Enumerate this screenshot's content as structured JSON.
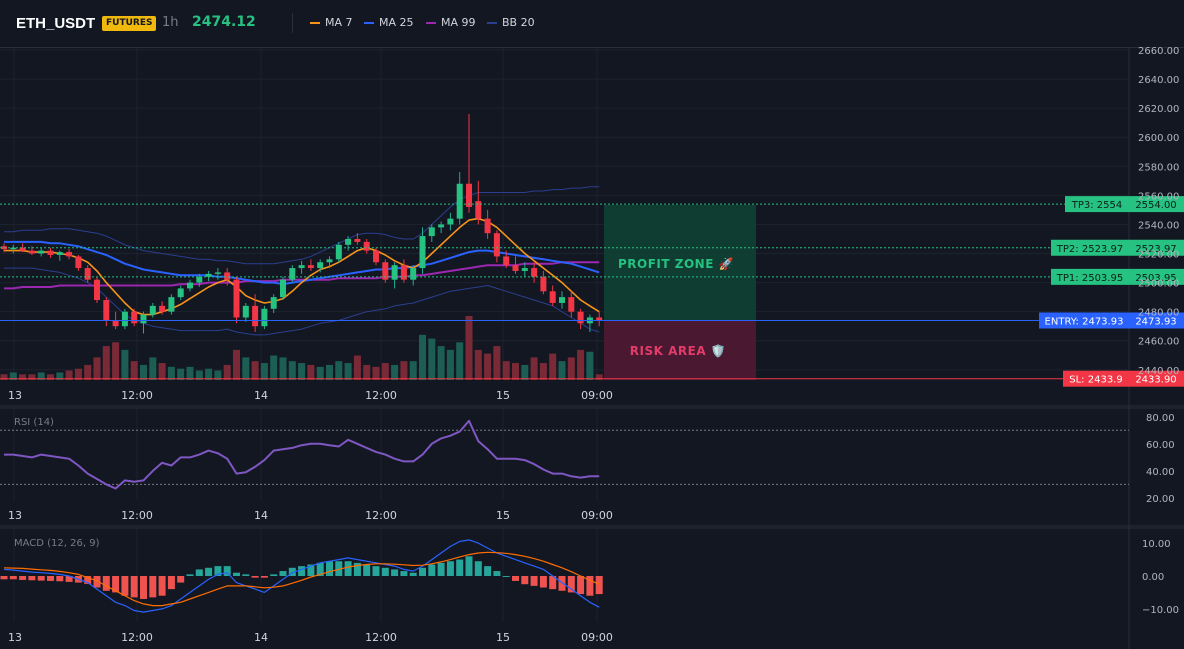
{
  "header": {
    "symbol": "ETH_USDT",
    "badge": "FUTURES",
    "timeframe": "1h",
    "last_price": "2474.12",
    "indicators": [
      {
        "label": "MA 7",
        "color": "#f7931a"
      },
      {
        "label": "MA 25",
        "color": "#2962ff"
      },
      {
        "label": "MA 99",
        "color": "#9c27b0"
      },
      {
        "label": "BB 20",
        "color": "#2a3f8f"
      }
    ]
  },
  "chart_data": [
    {
      "type": "candlestick",
      "title": "",
      "ylim": [
        2433,
        2660
      ],
      "y_ticks": [
        "2440.00",
        "2460.00",
        "2480.00",
        "2500.00",
        "2520.00",
        "2540.00",
        "2560.00",
        "2580.00",
        "2600.00",
        "2620.00",
        "2640.00",
        "2660.00"
      ],
      "x_ticks": [
        "13",
        "12:00",
        "14",
        "12:00",
        "15",
        "09:00"
      ],
      "levels": [
        {
          "name": "TP3",
          "label": "TP3: 2554",
          "axis_value": "2554.00",
          "value": 2554,
          "color": "#26c281"
        },
        {
          "name": "TP2",
          "label": "TP2: 2523.97",
          "axis_value": "2523.97",
          "value": 2523.97,
          "color": "#26c281"
        },
        {
          "name": "TP1",
          "label": "TP1: 2503.95",
          "axis_value": "2503.95",
          "value": 2503.95,
          "color": "#26c281"
        },
        {
          "name": "ENTRY",
          "label": "ENTRY: 2473.93",
          "axis_value": "2473.93",
          "value": 2473.93,
          "color": "#2962ff"
        },
        {
          "name": "SL",
          "label": "SL: 2433.9",
          "axis_value": "2433.90",
          "value": 2433.9,
          "color": "#f23645"
        }
      ],
      "zones": {
        "profit_label": "PROFIT ZONE 🚀",
        "risk_label": "RISK AREA 🛡️"
      },
      "candles": [
        [
          2525,
          2527,
          2521,
          2523
        ],
        [
          2523,
          2526,
          2520,
          2524
        ],
        [
          2524,
          2527,
          2521,
          2522
        ],
        [
          2522,
          2525,
          2519,
          2520
        ],
        [
          2520,
          2524,
          2518,
          2522
        ],
        [
          2522,
          2524,
          2517,
          2519
        ],
        [
          2519,
          2522,
          2515,
          2521
        ],
        [
          2521,
          2523,
          2516,
          2518
        ],
        [
          2518,
          2519,
          2508,
          2510
        ],
        [
          2510,
          2512,
          2500,
          2502
        ],
        [
          2502,
          2504,
          2486,
          2488
        ],
        [
          2488,
          2490,
          2470,
          2474
        ],
        [
          2474,
          2480,
          2468,
          2470
        ],
        [
          2470,
          2482,
          2468,
          2480
        ],
        [
          2480,
          2482,
          2470,
          2472
        ],
        [
          2472,
          2480,
          2465,
          2478
        ],
        [
          2478,
          2486,
          2476,
          2484
        ],
        [
          2484,
          2487,
          2478,
          2480
        ],
        [
          2480,
          2492,
          2478,
          2490
        ],
        [
          2490,
          2498,
          2488,
          2496
        ],
        [
          2496,
          2502,
          2494,
          2500
        ],
        [
          2500,
          2506,
          2497,
          2504
        ],
        [
          2504,
          2508,
          2501,
          2506
        ],
        [
          2506,
          2510,
          2502,
          2507
        ],
        [
          2507,
          2510,
          2498,
          2502
        ],
        [
          2502,
          2504,
          2472,
          2476
        ],
        [
          2476,
          2486,
          2473,
          2484
        ],
        [
          2484,
          2492,
          2466,
          2470
        ],
        [
          2470,
          2484,
          2468,
          2482
        ],
        [
          2482,
          2492,
          2479,
          2490
        ],
        [
          2490,
          2504,
          2488,
          2502
        ],
        [
          2502,
          2512,
          2500,
          2510
        ],
        [
          2510,
          2515,
          2506,
          2512
        ],
        [
          2512,
          2516,
          2508,
          2510
        ],
        [
          2510,
          2516,
          2507,
          2514
        ],
        [
          2514,
          2518,
          2510,
          2516
        ],
        [
          2516,
          2528,
          2514,
          2526
        ],
        [
          2526,
          2532,
          2522,
          2530
        ],
        [
          2530,
          2534,
          2526,
          2528
        ],
        [
          2528,
          2530,
          2520,
          2522
        ],
        [
          2522,
          2524,
          2512,
          2514
        ],
        [
          2514,
          2516,
          2500,
          2502
        ],
        [
          2502,
          2514,
          2496,
          2512
        ],
        [
          2512,
          2516,
          2500,
          2502
        ],
        [
          2502,
          2512,
          2498,
          2510
        ],
        [
          2510,
          2538,
          2506,
          2532
        ],
        [
          2532,
          2540,
          2528,
          2538
        ],
        [
          2538,
          2542,
          2534,
          2540
        ],
        [
          2540,
          2548,
          2536,
          2544
        ],
        [
          2544,
          2576,
          2540,
          2568
        ],
        [
          2568,
          2616,
          2548,
          2552
        ],
        [
          2556,
          2570,
          2540,
          2544
        ],
        [
          2544,
          2550,
          2530,
          2534
        ],
        [
          2534,
          2536,
          2514,
          2518
        ],
        [
          2518,
          2522,
          2510,
          2512
        ],
        [
          2512,
          2518,
          2506,
          2508
        ],
        [
          2508,
          2514,
          2504,
          2510
        ],
        [
          2510,
          2514,
          2500,
          2504
        ],
        [
          2504,
          2508,
          2492,
          2494
        ],
        [
          2494,
          2498,
          2484,
          2486
        ],
        [
          2486,
          2494,
          2482,
          2490
        ],
        [
          2490,
          2494,
          2476,
          2480
        ],
        [
          2480,
          2482,
          2468,
          2472
        ],
        [
          2472,
          2478,
          2466,
          2476
        ],
        [
          2476,
          2480,
          2470,
          2474
        ]
      ],
      "volumes": [
        3,
        4,
        3,
        3,
        4,
        3,
        4,
        5,
        6,
        8,
        12,
        18,
        20,
        16,
        10,
        8,
        12,
        9,
        7,
        6,
        7,
        5,
        6,
        5,
        8,
        16,
        12,
        10,
        9,
        13,
        12,
        10,
        9,
        8,
        7,
        8,
        10,
        9,
        13,
        8,
        7,
        9,
        8,
        10,
        10,
        24,
        22,
        18,
        16,
        20,
        34,
        16,
        14,
        18,
        10,
        9,
        8,
        12,
        9,
        14,
        10,
        12,
        16,
        15,
        3
      ],
      "ma7": [
        2522,
        2522,
        2522,
        2521,
        2521,
        2521,
        2520,
        2519,
        2517,
        2514,
        2508,
        2500,
        2493,
        2486,
        2480,
        2478,
        2478,
        2480,
        2482,
        2485,
        2489,
        2493,
        2497,
        2500,
        2502,
        2497,
        2491,
        2488,
        2486,
        2487,
        2489,
        2494,
        2500,
        2505,
        2509,
        2511,
        2514,
        2518,
        2522,
        2524,
        2522,
        2519,
        2515,
        2512,
        2510,
        2514,
        2520,
        2526,
        2532,
        2538,
        2543,
        2544,
        2542,
        2538,
        2532,
        2526,
        2520,
        2515,
        2510,
        2505,
        2500,
        2494,
        2488,
        2484,
        2480
      ],
      "ma25": [
        2528,
        2528,
        2528,
        2528,
        2528,
        2527,
        2527,
        2526,
        2525,
        2523,
        2521,
        2519,
        2516,
        2513,
        2511,
        2509,
        2508,
        2507,
        2506,
        2505,
        2505,
        2505,
        2505,
        2504,
        2504,
        2503,
        2502,
        2501,
        2500,
        2500,
        2499,
        2500,
        2501,
        2502,
        2503,
        2504,
        2505,
        2506,
        2507,
        2508,
        2509,
        2509,
        2510,
        2510,
        2511,
        2512,
        2513,
        2515,
        2517,
        2519,
        2521,
        2522,
        2522,
        2521,
        2520,
        2519,
        2518,
        2517,
        2516,
        2515,
        2514,
        2513,
        2511,
        2509,
        2507
      ],
      "ma99": [
        2496,
        2496,
        2497,
        2497,
        2497,
        2497,
        2498,
        2498,
        2498,
        2498,
        2498,
        2498,
        2498,
        2498,
        2498,
        2498,
        2498,
        2498,
        2498,
        2499,
        2499,
        2499,
        2500,
        2500,
        2500,
        2500,
        2501,
        2501,
        2501,
        2501,
        2502,
        2502,
        2502,
        2502,
        2502,
        2502,
        2503,
        2503,
        2503,
        2503,
        2503,
        2504,
        2504,
        2504,
        2505,
        2505,
        2506,
        2507,
        2508,
        2509,
        2510,
        2511,
        2512,
        2512,
        2512,
        2512,
        2513,
        2513,
        2513,
        2513,
        2514,
        2514,
        2514,
        2514,
        2514
      ],
      "bb_upper": [
        2535,
        2535,
        2536,
        2536,
        2536,
        2537,
        2537,
        2537,
        2536,
        2535,
        2534,
        2532,
        2529,
        2526,
        2524,
        2522,
        2521,
        2520,
        2519,
        2518,
        2517,
        2516,
        2516,
        2515,
        2515,
        2514,
        2513,
        2513,
        2513,
        2513,
        2514,
        2515,
        2516,
        2518,
        2521,
        2524,
        2527,
        2530,
        2533,
        2534,
        2534,
        2533,
        2531,
        2530,
        2530,
        2534,
        2540,
        2546,
        2552,
        2557,
        2560,
        2562,
        2562,
        2562,
        2562,
        2562,
        2562,
        2563,
        2563,
        2564,
        2564,
        2565,
        2565,
        2566,
        2566
      ],
      "bb_lower": [
        2510,
        2510,
        2510,
        2510,
        2509,
        2508,
        2507,
        2505,
        2503,
        2500,
        2496,
        2490,
        2484,
        2478,
        2474,
        2472,
        2470,
        2469,
        2468,
        2467,
        2467,
        2467,
        2467,
        2467,
        2468,
        2466,
        2465,
        2464,
        2464,
        2465,
        2466,
        2467,
        2468,
        2470,
        2472,
        2473,
        2474,
        2476,
        2478,
        2480,
        2481,
        2482,
        2484,
        2485,
        2486,
        2488,
        2490,
        2492,
        2494,
        2495,
        2496,
        2497,
        2498,
        2496,
        2494,
        2492,
        2490,
        2488,
        2486,
        2484,
        2480,
        2476,
        2472,
        2468,
        2466
      ]
    },
    {
      "type": "line",
      "title": "RSI (14)",
      "ylim": [
        17,
        85
      ],
      "y_ticks": [
        "20.00",
        "40.00",
        "60.00",
        "80.00"
      ],
      "x_ticks": [
        "13",
        "12:00",
        "14",
        "12:00",
        "15",
        "09:00"
      ],
      "bands": [
        30,
        70
      ],
      "values": [
        52,
        52,
        51,
        50,
        52,
        51,
        50,
        49,
        44,
        38,
        34,
        30,
        27,
        33,
        32,
        33,
        40,
        46,
        44,
        50,
        50,
        52,
        55,
        53,
        49,
        38,
        39,
        43,
        48,
        55,
        56,
        57,
        59,
        60,
        60,
        59,
        58,
        63,
        60,
        57,
        54,
        52,
        49,
        47,
        47,
        52,
        60,
        64,
        66,
        69,
        77,
        62,
        56,
        49,
        49,
        49,
        48,
        45,
        41,
        38,
        38,
        36,
        35,
        36,
        36
      ]
    },
    {
      "type": "bar",
      "title": "MACD (12, 26, 9)",
      "ylim": [
        -14,
        14
      ],
      "y_ticks": [
        "10.00",
        "0.00",
        "−10.00"
      ],
      "x_ticks": [
        "13",
        "12:00",
        "14",
        "12:00",
        "15",
        "09:00"
      ],
      "histogram": [
        -1,
        -1,
        -1.2,
        -1.3,
        -1.4,
        -1.5,
        -1.6,
        -1.8,
        -2,
        -2.4,
        -3.5,
        -4.5,
        -5,
        -6,
        -6.5,
        -7,
        -6.5,
        -6,
        -4,
        -2,
        0.5,
        2,
        2.5,
        3,
        3,
        1,
        0.5,
        -0.5,
        -0.5,
        0.5,
        1.5,
        2.5,
        3,
        3.5,
        4,
        4.5,
        4.5,
        4.5,
        4,
        3.5,
        3,
        2.5,
        2,
        1.5,
        1,
        2.5,
        3.5,
        4,
        4.5,
        5,
        6,
        4.5,
        3,
        1.5,
        0,
        -1.5,
        -2.5,
        -3,
        -3.5,
        -4,
        -4.5,
        -5,
        -5.5,
        -6,
        -5.5
      ],
      "macd": [
        2,
        1.8,
        1.5,
        1.2,
        1,
        0.8,
        0.5,
        0,
        -1,
        -2,
        -4,
        -6,
        -8,
        -9,
        -10.5,
        -11,
        -10.5,
        -10,
        -9,
        -7,
        -5,
        -3,
        -1,
        0.5,
        1,
        -2,
        -3,
        -4,
        -5,
        -3,
        -1,
        1,
        2,
        3,
        4,
        4.5,
        5,
        5.5,
        5,
        4.5,
        4,
        3.5,
        3,
        2,
        1.5,
        3,
        5,
        7,
        9,
        10.5,
        11,
        10,
        8.5,
        7,
        6,
        5,
        4,
        3,
        2,
        0,
        -2,
        -4,
        -6,
        -8,
        -9.5
      ],
      "signal": [
        2.5,
        2.4,
        2.3,
        2.1,
        1.9,
        1.7,
        1.4,
        1,
        0.5,
        -0.5,
        -1.5,
        -3,
        -4.5,
        -6,
        -7.5,
        -8.5,
        -9,
        -9,
        -8.5,
        -8,
        -7,
        -6,
        -5,
        -4,
        -3,
        -3,
        -3,
        -3.3,
        -3.6,
        -3.4,
        -3,
        -2.2,
        -1.3,
        -0.3,
        0.5,
        1.3,
        2,
        2.7,
        3.2,
        3.5,
        3.7,
        3.7,
        3.6,
        3.4,
        3.2,
        3.3,
        3.7,
        4.3,
        5,
        5.8,
        6.5,
        7,
        7.2,
        7.1,
        6.9,
        6.5,
        6,
        5.3,
        4.5,
        3.5,
        2.5,
        1.3,
        0,
        -1.3,
        -2.5
      ]
    }
  ]
}
